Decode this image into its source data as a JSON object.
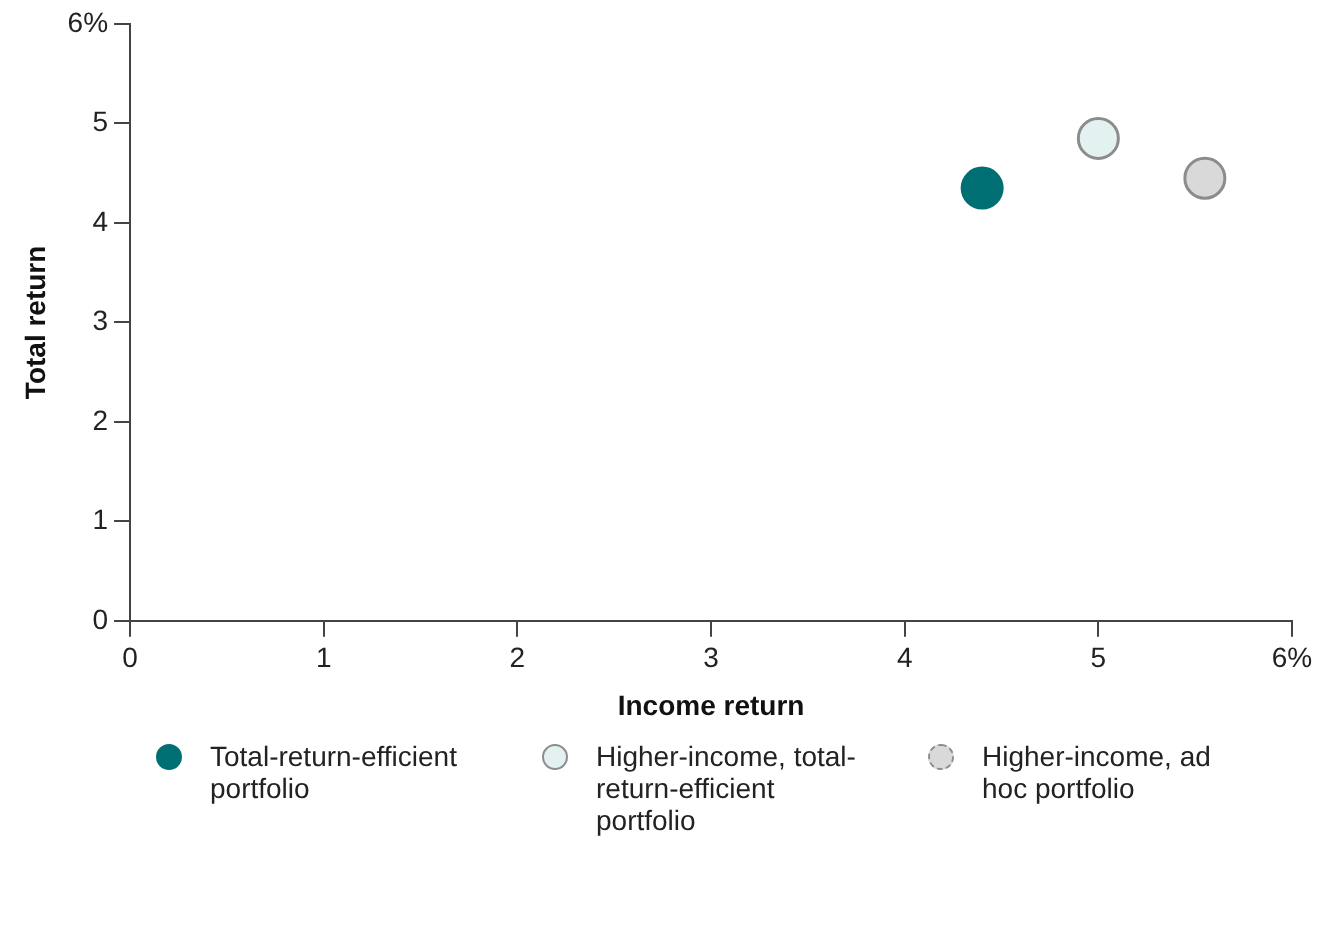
{
  "chart_data": {
    "type": "scatter",
    "xlabel": "Income return",
    "ylabel": "Total return",
    "series": [
      {
        "name": "Total-return-efficient portfolio",
        "color": "#006f73",
        "x": [
          4.4
        ],
        "values": [
          4.35
        ]
      },
      {
        "name": "Higher-income, total-return-efficient portfolio",
        "color": "#e3f2f1",
        "x": [
          5.0
        ],
        "values": [
          4.85
        ]
      },
      {
        "name": "Higher-income, ad hoc portfolio",
        "color": "#d9d9d9",
        "x": [
          5.55
        ],
        "values": [
          4.45
        ]
      }
    ],
    "xlim": [
      0,
      6
    ],
    "xticks": [
      0,
      1,
      2,
      3,
      4,
      5,
      {
        "value": 6,
        "label": "6%"
      }
    ],
    "ylim": [
      0,
      6
    ],
    "yticks": [
      0,
      1,
      2,
      3,
      4,
      5,
      {
        "value": 6,
        "label": "6%"
      }
    ],
    "grid": false,
    "legend": "bottom",
    "marker": "circle"
  }
}
